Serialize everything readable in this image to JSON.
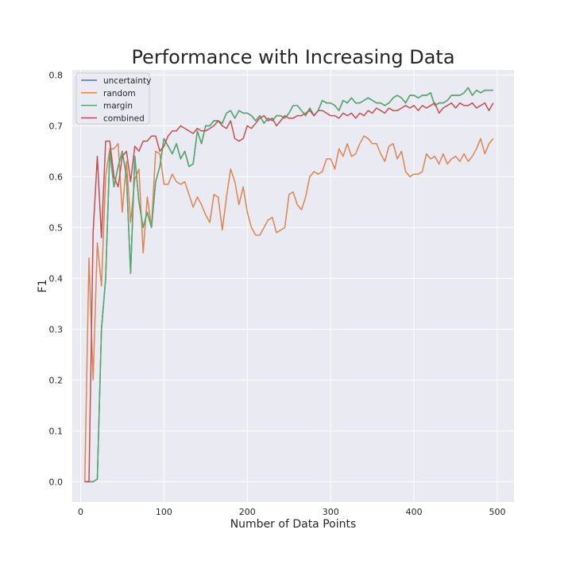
{
  "chart_data": {
    "type": "line",
    "title": "Performance with Increasing Data",
    "xlabel": "Number of Data Points",
    "ylabel": "F1",
    "xlim": [
      -10,
      520
    ],
    "ylim": [
      -0.04,
      0.81
    ],
    "xticks": [
      0,
      100,
      200,
      300,
      400,
      500
    ],
    "yticks": [
      0.0,
      0.1,
      0.2,
      0.3,
      0.4,
      0.5,
      0.6,
      0.7,
      0.8
    ],
    "xtick_labels": [
      "0",
      "100",
      "200",
      "300",
      "400",
      "500"
    ],
    "ytick_labels": [
      "0.0",
      "0.1",
      "0.2",
      "0.3",
      "0.4",
      "0.5",
      "0.6",
      "0.7",
      "0.8"
    ],
    "grid": true,
    "legend_position": "top-left",
    "x": [
      5,
      10,
      15,
      20,
      25,
      30,
      35,
      40,
      45,
      50,
      55,
      60,
      65,
      70,
      75,
      80,
      85,
      90,
      95,
      100,
      105,
      110,
      115,
      120,
      125,
      130,
      135,
      140,
      145,
      150,
      155,
      160,
      165,
      170,
      175,
      180,
      185,
      190,
      195,
      200,
      205,
      210,
      215,
      220,
      225,
      230,
      235,
      240,
      245,
      250,
      255,
      260,
      265,
      270,
      275,
      280,
      285,
      290,
      295,
      300,
      305,
      310,
      315,
      320,
      325,
      330,
      335,
      340,
      345,
      350,
      355,
      360,
      365,
      370,
      375,
      380,
      385,
      390,
      395,
      400,
      405,
      410,
      415,
      420,
      425,
      430,
      435,
      440,
      445,
      450,
      455,
      460,
      465,
      470,
      475,
      480,
      485,
      490,
      495
    ],
    "series": [
      {
        "name": "uncertainty",
        "color": "#4c72b0",
        "values": [
          0.0,
          0.0,
          0.0,
          0.005,
          0.3,
          0.4,
          0.65,
          0.58,
          0.62,
          0.65,
          0.6,
          0.41,
          0.64,
          0.55,
          0.5,
          0.53,
          0.5,
          0.59,
          0.62,
          0.675,
          0.66,
          0.645,
          0.665,
          0.635,
          0.65,
          0.62,
          0.625,
          0.69,
          0.665,
          0.7,
          0.7,
          0.71,
          0.71,
          0.705,
          0.725,
          0.73,
          0.715,
          0.73,
          0.725,
          0.725,
          0.72,
          0.71,
          0.72,
          0.705,
          0.715,
          0.71,
          0.72,
          0.72,
          0.715,
          0.725,
          0.74,
          0.74,
          0.73,
          0.72,
          0.735,
          0.72,
          0.73,
          0.75,
          0.745,
          0.745,
          0.74,
          0.73,
          0.75,
          0.745,
          0.755,
          0.745,
          0.745,
          0.75,
          0.755,
          0.75,
          0.745,
          0.745,
          0.74,
          0.745,
          0.755,
          0.76,
          0.755,
          0.745,
          0.76,
          0.76,
          0.755,
          0.76,
          0.76,
          0.765,
          0.74,
          0.745,
          0.745,
          0.75,
          0.76,
          0.76,
          0.76,
          0.765,
          0.775,
          0.76,
          0.77,
          0.765,
          0.77,
          0.77,
          0.77
        ]
      },
      {
        "name": "random",
        "color": "#dd8452",
        "values": [
          0.0,
          0.44,
          0.2,
          0.47,
          0.385,
          0.6,
          0.655,
          0.655,
          0.665,
          0.53,
          0.63,
          0.51,
          0.595,
          0.615,
          0.45,
          0.56,
          0.5,
          0.65,
          0.645,
          0.585,
          0.585,
          0.605,
          0.59,
          0.585,
          0.59,
          0.565,
          0.54,
          0.56,
          0.545,
          0.525,
          0.51,
          0.565,
          0.56,
          0.495,
          0.56,
          0.615,
          0.59,
          0.545,
          0.58,
          0.53,
          0.5,
          0.485,
          0.485,
          0.5,
          0.515,
          0.52,
          0.49,
          0.495,
          0.5,
          0.565,
          0.57,
          0.545,
          0.535,
          0.56,
          0.6,
          0.61,
          0.605,
          0.61,
          0.635,
          0.635,
          0.615,
          0.655,
          0.64,
          0.665,
          0.64,
          0.645,
          0.665,
          0.68,
          0.675,
          0.665,
          0.665,
          0.645,
          0.63,
          0.66,
          0.665,
          0.635,
          0.65,
          0.61,
          0.6,
          0.605,
          0.605,
          0.61,
          0.645,
          0.635,
          0.64,
          0.625,
          0.645,
          0.625,
          0.635,
          0.64,
          0.63,
          0.645,
          0.63,
          0.64,
          0.655,
          0.675,
          0.645,
          0.665,
          0.675
        ]
      },
      {
        "name": "margin",
        "color": "#55a868",
        "values": [
          0.0,
          0.0,
          0.0,
          0.005,
          0.3,
          0.4,
          0.65,
          0.58,
          0.62,
          0.65,
          0.6,
          0.41,
          0.64,
          0.55,
          0.5,
          0.53,
          0.5,
          0.59,
          0.62,
          0.675,
          0.66,
          0.645,
          0.665,
          0.635,
          0.65,
          0.62,
          0.625,
          0.69,
          0.665,
          0.7,
          0.7,
          0.71,
          0.71,
          0.705,
          0.725,
          0.73,
          0.715,
          0.73,
          0.725,
          0.725,
          0.72,
          0.71,
          0.72,
          0.705,
          0.715,
          0.71,
          0.72,
          0.72,
          0.715,
          0.725,
          0.74,
          0.74,
          0.73,
          0.72,
          0.735,
          0.72,
          0.73,
          0.75,
          0.745,
          0.745,
          0.74,
          0.73,
          0.75,
          0.745,
          0.755,
          0.745,
          0.745,
          0.75,
          0.755,
          0.75,
          0.745,
          0.745,
          0.74,
          0.745,
          0.755,
          0.76,
          0.755,
          0.745,
          0.76,
          0.76,
          0.755,
          0.76,
          0.76,
          0.765,
          0.74,
          0.745,
          0.745,
          0.75,
          0.76,
          0.76,
          0.76,
          0.765,
          0.775,
          0.76,
          0.77,
          0.765,
          0.77,
          0.77,
          0.77
        ]
      },
      {
        "name": "combined",
        "color": "#c44e52",
        "values": [
          0.0,
          0.0,
          0.49,
          0.64,
          0.48,
          0.67,
          0.67,
          0.6,
          0.58,
          0.64,
          0.65,
          0.59,
          0.66,
          0.65,
          0.67,
          0.67,
          0.68,
          0.68,
          0.65,
          0.66,
          0.68,
          0.69,
          0.69,
          0.7,
          0.695,
          0.69,
          0.685,
          0.695,
          0.69,
          0.69,
          0.695,
          0.7,
          0.71,
          0.7,
          0.695,
          0.71,
          0.675,
          0.67,
          0.675,
          0.7,
          0.695,
          0.705,
          0.715,
          0.72,
          0.71,
          0.715,
          0.7,
          0.71,
          0.72,
          0.715,
          0.715,
          0.72,
          0.72,
          0.725,
          0.73,
          0.72,
          0.73,
          0.73,
          0.725,
          0.72,
          0.72,
          0.715,
          0.725,
          0.72,
          0.725,
          0.715,
          0.725,
          0.72,
          0.73,
          0.725,
          0.735,
          0.73,
          0.725,
          0.735,
          0.73,
          0.73,
          0.735,
          0.74,
          0.735,
          0.74,
          0.73,
          0.74,
          0.735,
          0.74,
          0.745,
          0.725,
          0.735,
          0.74,
          0.745,
          0.735,
          0.745,
          0.74,
          0.74,
          0.745,
          0.735,
          0.74,
          0.745,
          0.73,
          0.745
        ]
      }
    ]
  }
}
